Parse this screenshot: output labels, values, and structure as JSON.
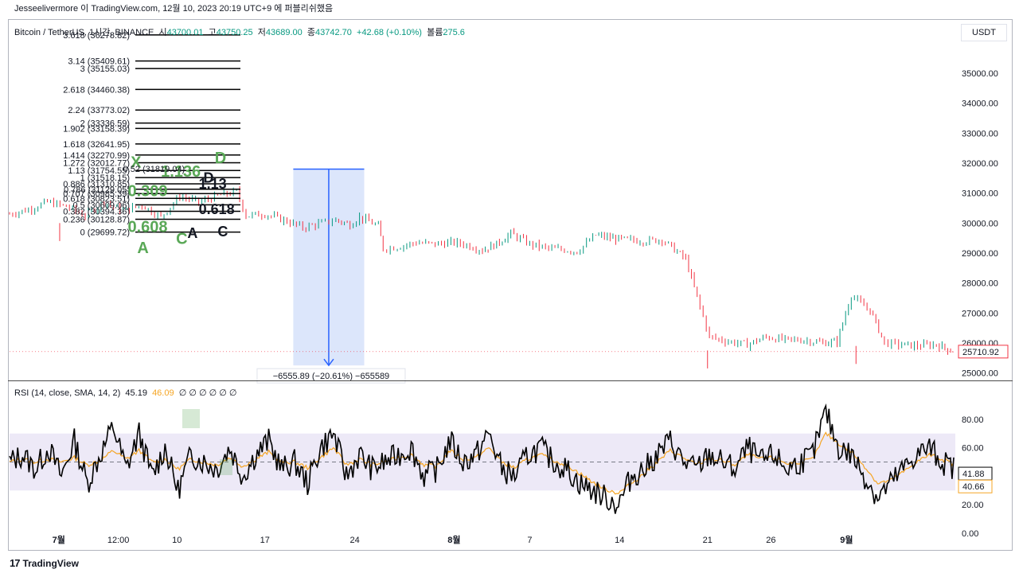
{
  "header": {
    "title": "Jesseelivermore 이 TradingView.com, 12월 10, 2023 20:19 UTC+9 에 퍼블리쉬했음"
  },
  "legend": {
    "symbol": "Bitcoin / TetherUS, 1시간, BINANCE",
    "open_label": "시",
    "open_value": "43700.01",
    "high_label": "고",
    "high_value": "43750.25",
    "low_label": "저",
    "low_value": "43689.00",
    "close_label": "종",
    "close_value": "43742.70",
    "change": "+42.68 (+0.10%)",
    "volume_label": "볼륨",
    "volume_value": "275.6"
  },
  "currency_button": "USDT",
  "rsi_legend": {
    "text": "RSI (14, close, SMA, 14, 2)",
    "rsi_value": "45.19",
    "sma_value": "46.09",
    "na": "∅ ∅ ∅ ∅ ∅ ∅"
  },
  "footer": {
    "brand": "TradingView"
  },
  "measure_label": "−6555.89 (−20.61%) −655589",
  "fib_levels": [
    {
      "label": "3.618 (36278.82)",
      "level": 3.618,
      "price": 36278.82
    },
    {
      "label": "3.14 (35409.61)",
      "level": 3.14,
      "price": 35409.61
    },
    {
      "label": "3 (35155.03)",
      "level": 3,
      "price": 35155.03
    },
    {
      "label": "2.618 (34460.38)",
      "level": 2.618,
      "price": 34460.38
    },
    {
      "label": "2.24 (33773.02)",
      "level": 2.24,
      "price": 33773.02
    },
    {
      "label": "2 (33336.59)",
      "level": 2,
      "price": 33336.59
    },
    {
      "label": "1.902 (33158.39)",
      "level": 1.902,
      "price": 33158.39
    },
    {
      "label": "1.618 (32641.95)",
      "level": 1.618,
      "price": 32641.95
    },
    {
      "label": "1.414 (32270.99)",
      "level": 1.414,
      "price": 32270.99
    },
    {
      "label": "1.272 (32012.77)",
      "level": 1.272,
      "price": 32012.77
    },
    {
      "label": "1.13 (31754.55)",
      "level": 1.13,
      "price": 31754.55
    },
    {
      "label": "1 (31518.15)",
      "level": 1,
      "price": 31518.15
    },
    {
      "label": "0.886 (31310.85)",
      "level": 0.886,
      "price": 31310.85
    },
    {
      "label": "0.786 (31129.05)",
      "level": 0.786,
      "price": 31129.05
    },
    {
      "label": "0.707 (30985.39)",
      "level": 0.707,
      "price": 30985.39
    },
    {
      "label": "0.618 (30823.51)",
      "level": 0.618,
      "price": 30823.51
    },
    {
      "label": "0.5 (30609.06)",
      "level": 0.5,
      "price": 30609.06
    },
    {
      "label": "0.382 (30394.36)",
      "level": 0.382,
      "price": 30394.36
    },
    {
      "label": "0.236 (30128.87)",
      "level": 0.236,
      "price": 30128.87
    },
    {
      "label": "0 (29699.72)",
      "level": 0,
      "price": 29699.72
    }
  ],
  "pattern_labels": {
    "green": [
      {
        "text": "D",
        "price": 32000,
        "t": 0.217
      },
      {
        "text": "X",
        "price": 31850,
        "t": 0.128
      },
      {
        "text": "1.136",
        "price": 31550,
        "t": 0.16
      },
      {
        "text": "0.309",
        "price": 30900,
        "t": 0.125
      },
      {
        "text": "0.608",
        "price": 29700,
        "t": 0.125
      },
      {
        "text": "A",
        "price": 29000,
        "t": 0.135
      },
      {
        "text": "C",
        "price": 29300,
        "t": 0.176
      }
    ],
    "black": [
      {
        "text": "D",
        "price": 31350,
        "t": 0.205
      },
      {
        "text": "1.13",
        "price": 31150,
        "t": 0.2
      },
      {
        "text": "0.618",
        "price": 30300,
        "t": 0.2
      },
      {
        "text": "A",
        "price": 29500,
        "t": 0.188
      },
      {
        "text": "C",
        "price": 29550,
        "t": 0.22
      }
    ],
    "purple": {
      "text": "0.52 (31819.04)",
      "price": 31819.04,
      "t": 0.12
    }
  },
  "chart_data": [
    {
      "type": "line",
      "name": "price",
      "series": [
        {
          "x": [
            "7월",
            "12:00",
            "10",
            "17",
            "24",
            "8월",
            "7",
            "14",
            "21",
            "26",
            "9월"
          ],
          "values": [
            30350,
            30750,
            30200,
            30300,
            30100,
            29300,
            29400,
            29000,
            25900,
            26000,
            25710.92
          ]
        }
      ],
      "x_tick_labels": [
        "7월",
        "12:00",
        "10",
        "17",
        "24",
        "8월",
        "7",
        "14",
        "21",
        "26",
        "9월"
      ],
      "x_tick_t": [
        0.052,
        0.115,
        0.177,
        0.27,
        0.365,
        0.47,
        0.55,
        0.645,
        0.738,
        0.805,
        0.885
      ],
      "path": [
        [
          0.0,
          30300
        ],
        [
          0.02,
          30450
        ],
        [
          0.04,
          30700
        ],
        [
          0.06,
          30550
        ],
        [
          0.08,
          30250
        ],
        [
          0.1,
          30700
        ],
        [
          0.12,
          30400
        ],
        [
          0.14,
          30600
        ],
        [
          0.16,
          30200
        ],
        [
          0.18,
          30900
        ],
        [
          0.2,
          30700
        ],
        [
          0.22,
          30900
        ],
        [
          0.24,
          31050
        ],
        [
          0.25,
          30250
        ],
        [
          0.27,
          30300
        ],
        [
          0.29,
          30100
        ],
        [
          0.31,
          29850
        ],
        [
          0.33,
          30000
        ],
        [
          0.345,
          30100
        ],
        [
          0.36,
          29950
        ],
        [
          0.37,
          30200
        ],
        [
          0.39,
          29900
        ],
        [
          0.395,
          29150
        ],
        [
          0.41,
          29200
        ],
        [
          0.43,
          29350
        ],
        [
          0.45,
          29300
        ],
        [
          0.47,
          29350
        ],
        [
          0.48,
          29300
        ],
        [
          0.5,
          29100
        ],
        [
          0.515,
          29300
        ],
        [
          0.53,
          29650
        ],
        [
          0.55,
          29300
        ],
        [
          0.57,
          29150
        ],
        [
          0.59,
          29100
        ],
        [
          0.6,
          29050
        ],
        [
          0.62,
          29600
        ],
        [
          0.635,
          29500
        ],
        [
          0.65,
          29450
        ],
        [
          0.67,
          29400
        ],
        [
          0.69,
          29450
        ],
        [
          0.7,
          29200
        ],
        [
          0.715,
          28800
        ],
        [
          0.73,
          27200
        ],
        [
          0.74,
          26200
        ],
        [
          0.76,
          26050
        ],
        [
          0.78,
          25950
        ],
        [
          0.8,
          26200
        ],
        [
          0.82,
          26100
        ],
        [
          0.84,
          26100
        ],
        [
          0.86,
          26000
        ],
        [
          0.875,
          26050
        ],
        [
          0.89,
          27600
        ],
        [
          0.9,
          27300
        ],
        [
          0.91,
          27100
        ],
        [
          0.925,
          26000
        ],
        [
          0.94,
          25950
        ],
        [
          0.96,
          25900
        ],
        [
          0.98,
          25950
        ],
        [
          0.995,
          25750
        ],
        [
          1.0,
          25710.92
        ]
      ],
      "y_tick_labels": [
        "35000.00",
        "34000.00",
        "33000.00",
        "32000.00",
        "31000.00",
        "30000.00",
        "29000.00",
        "28000.00",
        "27000.00",
        "26000.00",
        "25000.00"
      ],
      "ylim": [
        24750,
        36700
      ],
      "last_price_label": "25710.92",
      "last_price": 25710.92,
      "measure": {
        "from": 31800,
        "to": 25250,
        "t_from": 0.3,
        "t_to": 0.375
      }
    },
    {
      "type": "line",
      "name": "rsi",
      "series": [
        {
          "name": "RSI",
          "values": [
            50,
            55,
            45,
            60,
            40,
            65,
            35,
            55,
            75,
            45,
            70,
            40,
            60,
            30,
            55,
            50,
            45,
            60,
            40,
            55,
            65,
            45,
            50,
            35,
            60,
            70,
            40,
            55,
            45,
            50,
            55,
            60,
            40,
            45,
            65,
            50,
            55,
            70,
            45,
            40,
            55,
            60,
            50,
            45,
            35,
            30,
            25,
            20,
            40,
            45,
            55,
            65,
            50,
            45,
            55,
            50,
            45,
            60,
            50,
            55,
            45,
            50,
            55,
            85,
            60,
            55,
            40,
            25,
            35,
            45,
            55,
            60,
            50,
            45
          ]
        },
        {
          "name": "SMA",
          "values": [
            50,
            52,
            50,
            52,
            50,
            53,
            48,
            51,
            58,
            52,
            58,
            50,
            52,
            45,
            52,
            50,
            48,
            53,
            47,
            52,
            57,
            50,
            50,
            46,
            53,
            60,
            48,
            52,
            48,
            50,
            53,
            55,
            48,
            47,
            58,
            52,
            53,
            60,
            50,
            46,
            52,
            55,
            51,
            48,
            42,
            36,
            31,
            28,
            35,
            42,
            50,
            58,
            53,
            48,
            52,
            51,
            48,
            55,
            52,
            53,
            49,
            50,
            52,
            70,
            63,
            57,
            47,
            35,
            37,
            43,
            50,
            55,
            52,
            48
          ]
        }
      ],
      "y_tick_labels": [
        "80.00",
        "60.00",
        "40.00",
        "20.00",
        "0.00"
      ],
      "ylim": [
        0,
        95
      ],
      "band": [
        30,
        70
      ],
      "mid": 50,
      "rsi_label": "41.88",
      "sma_label": "40.66",
      "rsi_last": 41.88,
      "sma_last": 40.66
    }
  ],
  "colors": {
    "up": "#089981",
    "down": "#f23645",
    "rsi": "#000000",
    "sma": "#f5a524",
    "band": "#ede9f7",
    "measure": "#dce6fb",
    "measure_line": "#2962ff",
    "pattern_green": "#5aa857"
  }
}
